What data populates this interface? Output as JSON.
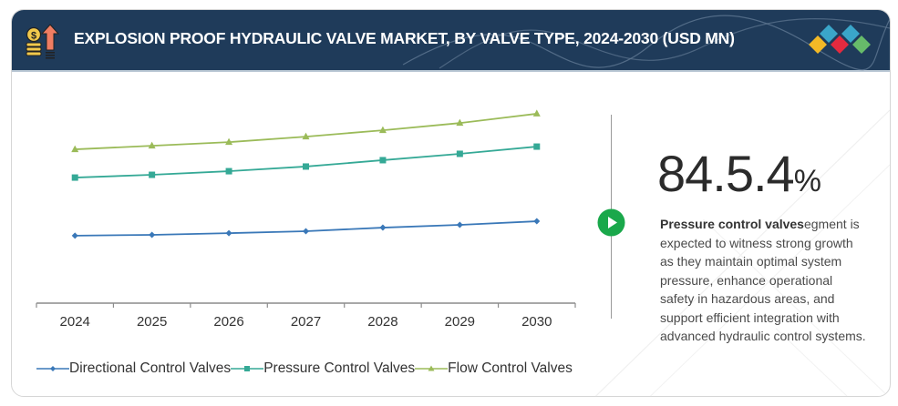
{
  "header": {
    "title": "EXPLOSION PROOF HYDRAULIC VALVE MARKET, BY VALVE TYPE, 2024-2030 (USD MN)",
    "left_icon": "money-growth-icon",
    "right_icon": "brand-logo-diamonds-icon",
    "background_color": "#1f3b5a",
    "logo_colors": [
      "#f2b926",
      "#3aa6c9",
      "#e42a3f",
      "#3aa6c9",
      "#67bb6a"
    ]
  },
  "highlight": {
    "icon": "play-circle-icon",
    "icon_color": "#1aa84b",
    "stat_value": "84.5.4",
    "stat_suffix": "%",
    "desc_bold": "Pressure control valves",
    "desc_rest": "egment is expected to witness strong growth as they maintain optimal system pressure, enhance operational safety in hazardous areas, and support efficient integration with advanced hydraulic control systems."
  },
  "chart_data": {
    "type": "line",
    "title": "EXPLOSION PROOF HYDRAULIC VALVE MARKET, BY VALVE TYPE, 2024-2030 (USD MN)",
    "xlabel": "",
    "ylabel": "",
    "categories": [
      "2024",
      "2025",
      "2026",
      "2027",
      "2028",
      "2029",
      "2030"
    ],
    "y_axis_visible": false,
    "y_units": "relative (no axis scale shown)",
    "ylim": [
      0,
      100
    ],
    "grid": false,
    "legend_position": "bottom",
    "series": [
      {
        "name": "Directional Control Valves",
        "marker": "diamond",
        "color": "#3a78b8",
        "values": [
          31.8,
          32.2,
          33.0,
          33.9,
          35.6,
          36.9,
          38.6
        ]
      },
      {
        "name": "Pressure Control Valves",
        "marker": "square",
        "color": "#35a996",
        "values": [
          59.2,
          60.5,
          62.2,
          64.4,
          67.4,
          70.4,
          73.8
        ]
      },
      {
        "name": "Flow Control Valves",
        "marker": "triangle",
        "color": "#9bbb59",
        "values": [
          72.5,
          74.2,
          75.9,
          78.5,
          81.5,
          84.9,
          89.3
        ]
      }
    ]
  }
}
